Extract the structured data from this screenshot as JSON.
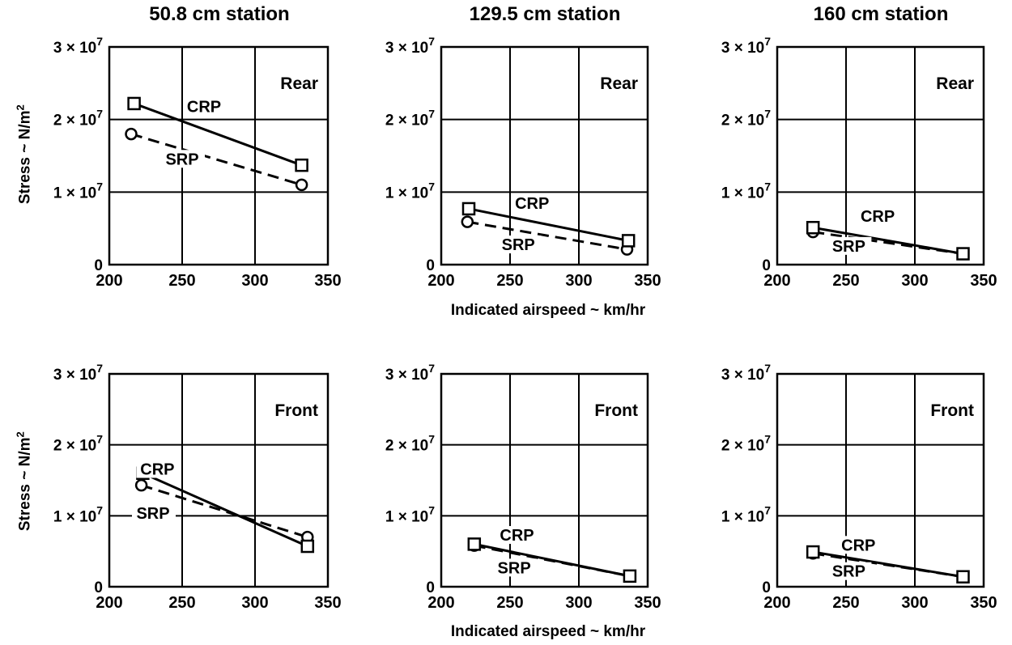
{
  "column_titles": [
    "50.8 cm station",
    "129.5 cm station",
    "160 cm station"
  ],
  "ylabel": "Stress ~ N/m",
  "ylabel_exp": "2",
  "xlabel": "Indicated airspeed ~ km/hr",
  "chart_data": [
    {
      "type": "line",
      "title": "50.8 cm station",
      "panel_label": "Rear",
      "xlim": [
        200,
        350
      ],
      "ylim": [
        0,
        30000000
      ],
      "x_ticks": [
        "200",
        "250",
        "300",
        "350"
      ],
      "y_ticks": [
        {
          "base": "0",
          "exp": ""
        },
        {
          "base": "1 × 10",
          "exp": "7"
        },
        {
          "base": "2 × 10",
          "exp": "7"
        },
        {
          "base": "3 × 10",
          "exp": "7"
        }
      ],
      "series": [
        {
          "name": "CRP",
          "style": "solid",
          "marker": "square",
          "x": [
            217,
            332
          ],
          "values": [
            22200000,
            13700000
          ]
        },
        {
          "name": "SRP",
          "style": "dashed",
          "marker": "circle",
          "x": [
            215,
            332
          ],
          "values": [
            18000000,
            11000000
          ]
        }
      ]
    },
    {
      "type": "line",
      "title": "129.5 cm station",
      "panel_label": "Rear",
      "xlim": [
        200,
        350
      ],
      "ylim": [
        0,
        30000000
      ],
      "x_ticks": [
        "200",
        "250",
        "300",
        "350"
      ],
      "y_ticks": [
        {
          "base": "0",
          "exp": ""
        },
        {
          "base": "1 × 10",
          "exp": "7"
        },
        {
          "base": "2 × 10",
          "exp": "7"
        },
        {
          "base": "3 × 10",
          "exp": "7"
        }
      ],
      "series": [
        {
          "name": "CRP",
          "style": "solid",
          "marker": "square",
          "x": [
            220,
            336
          ],
          "values": [
            7700000,
            3300000
          ]
        },
        {
          "name": "SRP",
          "style": "dashed",
          "marker": "circle",
          "x": [
            219,
            335
          ],
          "values": [
            5900000,
            2100000
          ]
        }
      ]
    },
    {
      "type": "line",
      "title": "160 cm station",
      "panel_label": "Rear",
      "xlim": [
        200,
        350
      ],
      "ylim": [
        0,
        30000000
      ],
      "x_ticks": [
        "200",
        "250",
        "300",
        "350"
      ],
      "y_ticks": [
        {
          "base": "0",
          "exp": ""
        },
        {
          "base": "1 × 10",
          "exp": "7"
        },
        {
          "base": "2 × 10",
          "exp": "7"
        },
        {
          "base": "3 × 10",
          "exp": "7"
        }
      ],
      "series": [
        {
          "name": "CRP",
          "style": "solid",
          "marker": "square",
          "x": [
            226,
            335
          ],
          "values": [
            5100000,
            1500000
          ]
        },
        {
          "name": "SRP",
          "style": "dashed",
          "marker": "circle",
          "x": [
            226,
            335
          ],
          "values": [
            4500000,
            1500000
          ]
        }
      ]
    },
    {
      "type": "line",
      "title": "",
      "panel_label": "Front",
      "xlim": [
        200,
        350
      ],
      "ylim": [
        0,
        30000000
      ],
      "x_ticks": [
        "200",
        "250",
        "300",
        "350"
      ],
      "y_ticks": [
        {
          "base": "0",
          "exp": ""
        },
        {
          "base": "1 × 10",
          "exp": "7"
        },
        {
          "base": "2 × 10",
          "exp": "7"
        },
        {
          "base": "3 × 10",
          "exp": "7"
        }
      ],
      "series": [
        {
          "name": "CRP",
          "style": "solid",
          "marker": "square",
          "x": [
            223,
            336
          ],
          "values": [
            16000000,
            5700000
          ]
        },
        {
          "name": "SRP",
          "style": "dashed",
          "marker": "circle",
          "x": [
            222,
            336
          ],
          "values": [
            14300000,
            7000000
          ]
        }
      ]
    },
    {
      "type": "line",
      "title": "",
      "panel_label": "Front",
      "xlim": [
        200,
        350
      ],
      "ylim": [
        0,
        30000000
      ],
      "x_ticks": [
        "200",
        "250",
        "300",
        "350"
      ],
      "y_ticks": [
        {
          "base": "0",
          "exp": ""
        },
        {
          "base": "1 × 10",
          "exp": "7"
        },
        {
          "base": "2 × 10",
          "exp": "7"
        },
        {
          "base": "3 × 10",
          "exp": "7"
        }
      ],
      "series": [
        {
          "name": "CRP",
          "style": "solid",
          "marker": "square",
          "x": [
            224,
            337
          ],
          "values": [
            6000000,
            1500000
          ]
        },
        {
          "name": "SRP",
          "style": "dashed",
          "marker": "circle",
          "x": [
            224,
            337
          ],
          "values": [
            5800000,
            1500000
          ]
        }
      ]
    },
    {
      "type": "line",
      "title": "",
      "panel_label": "Front",
      "xlim": [
        200,
        350
      ],
      "ylim": [
        0,
        30000000
      ],
      "x_ticks": [
        "200",
        "250",
        "300",
        "350"
      ],
      "y_ticks": [
        {
          "base": "0",
          "exp": ""
        },
        {
          "base": "1 × 10",
          "exp": "7"
        },
        {
          "base": "2 × 10",
          "exp": "7"
        },
        {
          "base": "3 × 10",
          "exp": "7"
        }
      ],
      "series": [
        {
          "name": "CRP",
          "style": "solid",
          "marker": "square",
          "x": [
            226,
            335
          ],
          "values": [
            4900000,
            1400000
          ]
        },
        {
          "name": "SRP",
          "style": "dashed",
          "marker": "circle",
          "x": [
            226,
            335
          ],
          "values": [
            4700000,
            1400000
          ]
        }
      ]
    }
  ]
}
